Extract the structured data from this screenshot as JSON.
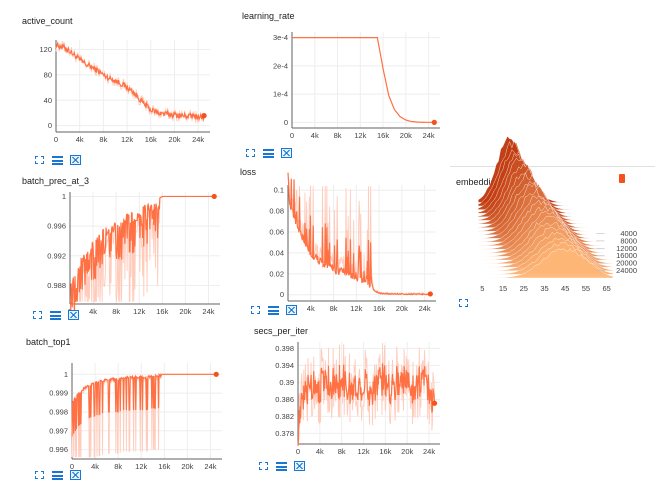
{
  "accent_color": "#ff7043",
  "smoothed_color": "#f4511e",
  "raw_color": "#ffccbc",
  "toolbar": {
    "expand": "expand-icon",
    "lines": "list-icon",
    "fit": "fit-domain-icon"
  },
  "chart_data": [
    {
      "id": "active_count",
      "type": "line",
      "title": "active_count",
      "xlim": [
        0,
        26000
      ],
      "ylim": [
        -10,
        135
      ],
      "yticks": [
        0,
        40,
        80,
        120
      ],
      "ytick_labels": [
        "0",
        "40",
        "80",
        "120"
      ],
      "xticks": [
        0,
        4000,
        8000,
        12000,
        16000,
        20000,
        24000
      ],
      "xtick_labels": [
        "0",
        "4k",
        "8k",
        "12k",
        "16k",
        "20k",
        "24k"
      ],
      "series": [
        {
          "x": [
            0,
            1000,
            2000,
            3000,
            4000,
            5000,
            6000,
            7000,
            8000,
            9000,
            10000,
            11000,
            12000,
            13000,
            14000,
            15000,
            16000,
            17000,
            18000,
            19000,
            20000,
            21000,
            22000,
            23000,
            24000,
            25000
          ],
          "values": [
            127,
            125,
            120,
            112,
            104,
            97,
            92,
            87,
            80,
            75,
            71,
            66,
            60,
            53,
            43,
            33,
            25,
            21,
            19,
            18,
            17,
            16,
            15,
            15,
            14,
            13
          ]
        }
      ],
      "grid": true
    },
    {
      "id": "learning_rate",
      "type": "line",
      "title": "learning_rate",
      "xlim": [
        0,
        26000
      ],
      "ylim": [
        -2e-05,
        0.00032
      ],
      "yticks": [
        0,
        0.0001,
        0.0002,
        0.0003
      ],
      "ytick_labels": [
        "0",
        "1e-4",
        "2e-4",
        "3e-4"
      ],
      "xticks": [
        0,
        4000,
        8000,
        12000,
        16000,
        20000,
        24000
      ],
      "xtick_labels": [
        "0",
        "4k",
        "8k",
        "12k",
        "16k",
        "20k",
        "24k"
      ],
      "series": [
        {
          "x": [
            0,
            15000,
            16000,
            17000,
            18000,
            19000,
            20000,
            21000,
            22000,
            23000,
            24000,
            25000
          ],
          "values": [
            0.0003,
            0.0003,
            0.00019,
            9.5e-05,
            4.5e-05,
            2e-05,
            8e-06,
            3e-06,
            1e-06,
            3e-07,
            1e-07,
            0
          ]
        }
      ],
      "grid": true
    },
    {
      "id": "batch_prec_at_3",
      "type": "line",
      "title": "batch_prec_at_3",
      "xlim": [
        0,
        26000
      ],
      "ylim": [
        0.9855,
        1.0006
      ],
      "yticks": [
        0.988,
        0.992,
        0.996,
        1
      ],
      "ytick_labels": [
        "0.988",
        "0.992",
        "0.996",
        "1"
      ],
      "xticks": [
        0,
        4000,
        8000,
        12000,
        16000,
        20000,
        24000
      ],
      "xtick_labels": [
        "0",
        "4k",
        "8k",
        "12k",
        "16k",
        "20k",
        "24k"
      ],
      "series": [
        {
          "x": [
            0,
            1000,
            2000,
            3000,
            4000,
            5000,
            6000,
            7000,
            8000,
            9000,
            10000,
            11000,
            12000,
            13000,
            14000,
            15000,
            16000,
            17000,
            18000,
            19000,
            20000,
            21000,
            22000,
            23000,
            24000,
            25000
          ],
          "values": [
            0.989,
            0.99,
            0.992,
            0.993,
            0.994,
            0.995,
            0.996,
            0.996,
            0.997,
            0.997,
            0.998,
            0.998,
            0.998,
            0.999,
            0.999,
            0.9995,
            1,
            1,
            1,
            1,
            1,
            1,
            1,
            1,
            1,
            1
          ]
        }
      ],
      "grid": true
    },
    {
      "id": "loss",
      "type": "line",
      "title": "loss",
      "xlim": [
        0,
        26000
      ],
      "ylim": [
        -0.006,
        0.105
      ],
      "yticks": [
        0,
        0.02,
        0.04,
        0.06,
        0.08,
        0.1
      ],
      "ytick_labels": [
        "0",
        "0.02",
        "0.04",
        "0.06",
        "0.08",
        "0.1"
      ],
      "xticks": [
        0,
        4000,
        8000,
        12000,
        16000,
        20000,
        24000
      ],
      "xtick_labels": [
        "0",
        "4k",
        "8k",
        "12k",
        "16k",
        "20k",
        "24k"
      ],
      "series": [
        {
          "x": [
            0,
            1000,
            2000,
            3000,
            4000,
            5000,
            6000,
            7000,
            8000,
            9000,
            10000,
            11000,
            12000,
            13000,
            14000,
            15000,
            16000,
            17000,
            18000,
            19000,
            20000,
            21000,
            22000,
            23000,
            24000,
            25000
          ],
          "values": [
            0.09,
            0.07,
            0.055,
            0.045,
            0.035,
            0.03,
            0.026,
            0.022,
            0.02,
            0.018,
            0.016,
            0.014,
            0.013,
            0.011,
            0.008,
            0.004,
            0.001,
            0.0005,
            0.0003,
            0.0002,
            0.0002,
            0.0001,
            0.0001,
            0.0001,
            0.0001,
            0.0001
          ]
        }
      ],
      "grid": true
    },
    {
      "id": "batch_top1",
      "type": "line",
      "title": "batch_top1",
      "xlim": [
        0,
        26000
      ],
      "ylim": [
        0.9955,
        1.0006
      ],
      "yticks": [
        0.996,
        0.997,
        0.998,
        0.999,
        1
      ],
      "ytick_labels": [
        "0.996",
        "0.997",
        "0.998",
        "0.999",
        "1"
      ],
      "xticks": [
        0,
        4000,
        8000,
        12000,
        16000,
        20000,
        24000
      ],
      "xtick_labels": [
        "0",
        "4k",
        "8k",
        "12k",
        "16k",
        "20k",
        "24k"
      ],
      "series": [
        {
          "x": [
            0,
            1000,
            2000,
            3000,
            4000,
            5000,
            6000,
            7000,
            8000,
            9000,
            10000,
            11000,
            12000,
            13000,
            14000,
            15000,
            16000,
            17000,
            18000,
            19000,
            20000,
            21000,
            22000,
            23000,
            24000,
            25000
          ],
          "values": [
            0.9985,
            0.999,
            0.9993,
            0.9995,
            0.9996,
            0.9997,
            0.9998,
            0.9998,
            0.9998,
            0.9999,
            0.9999,
            0.9999,
            0.9999,
            0.9999,
            1,
            1,
            1,
            1,
            1,
            1,
            1,
            1,
            1,
            1,
            1,
            1
          ]
        }
      ],
      "grid": true
    },
    {
      "id": "secs_per_iter",
      "type": "line",
      "title": "secs_per_iter",
      "xlim": [
        0,
        26000
      ],
      "ylim": [
        0.3755,
        0.3995
      ],
      "yticks": [
        0.378,
        0.382,
        0.386,
        0.39,
        0.394,
        0.398
      ],
      "ytick_labels": [
        "0.378",
        "0.382",
        "0.386",
        "0.39",
        "0.394",
        "0.398"
      ],
      "xticks": [
        0,
        4000,
        8000,
        12000,
        16000,
        20000,
        24000
      ],
      "xtick_labels": [
        "0",
        "4k",
        "8k",
        "12k",
        "16k",
        "20k",
        "24k"
      ],
      "series": [
        {
          "x": [
            0,
            1000,
            2000,
            3000,
            4000,
            5000,
            6000,
            7000,
            8000,
            9000,
            10000,
            11000,
            12000,
            13000,
            14000,
            15000,
            16000,
            17000,
            18000,
            19000,
            20000,
            21000,
            22000,
            23000,
            24000,
            25000
          ],
          "values": [
            0.379,
            0.386,
            0.389,
            0.39,
            0.389,
            0.391,
            0.39,
            0.389,
            0.391,
            0.389,
            0.388,
            0.389,
            0.39,
            0.388,
            0.389,
            0.391,
            0.39,
            0.389,
            0.39,
            0.391,
            0.39,
            0.389,
            0.39,
            0.391,
            0.389,
            0.384
          ]
        }
      ],
      "grid": true
    },
    {
      "id": "embedding_dists",
      "type": "area",
      "title": "embedding_dists",
      "xlim": [
        0,
        70
      ],
      "xticks": [
        5,
        15,
        25,
        35,
        45,
        55,
        65
      ],
      "xtick_labels": [
        "5",
        "15",
        "25",
        "35",
        "45",
        "55",
        "65"
      ],
      "steps": [
        4000,
        8000,
        12000,
        16000,
        20000,
        24000
      ],
      "step_labels": [
        "4000",
        "8000",
        "12000",
        "16000",
        "20000",
        "24000"
      ],
      "peak_centers": [
        18,
        22,
        26,
        30,
        34,
        38,
        41,
        43
      ],
      "peak_heights": [
        1.0,
        0.95,
        0.9,
        0.85,
        0.8,
        0.7,
        0.6,
        0.55
      ]
    }
  ]
}
